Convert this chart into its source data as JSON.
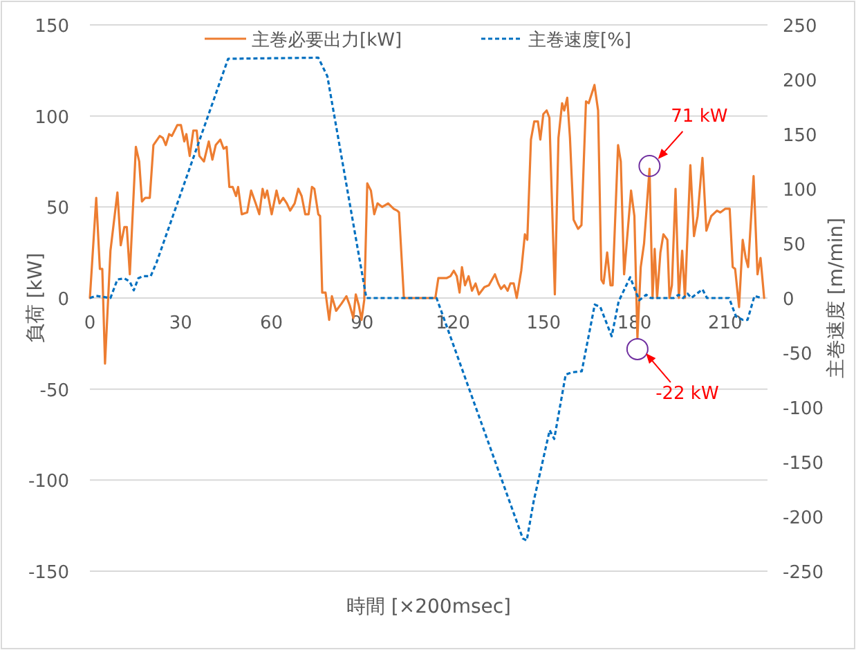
{
  "chart_data": {
    "type": "line",
    "xlabel": "時間 [×200msec]",
    "ylabel": "負荷 [kW]",
    "y2label": "主巻速度 [m/min]",
    "xlim": [
      0,
      224
    ],
    "xticks": [
      0,
      30,
      60,
      90,
      120,
      150,
      180,
      210
    ],
    "ylim": [
      -150,
      150
    ],
    "yticks": [
      -150,
      -100,
      -50,
      0,
      50,
      100,
      150
    ],
    "y2lim": [
      -250,
      250
    ],
    "y2ticks": [
      -250,
      -200,
      -150,
      -100,
      -50,
      0,
      50,
      100,
      150,
      200,
      250
    ],
    "grid": "y",
    "legend": "top",
    "marker": "none",
    "series": [
      {
        "name": "主巻必要出力[kW]",
        "color": "#ed7d31",
        "line_style": "solid",
        "x": [
          0,
          2.1,
          3.3,
          4.1,
          5,
          6.8,
          9.1,
          10.2,
          11.4,
          12.2,
          13.2,
          15.2,
          16.3,
          17.2,
          18.3,
          19.8,
          21,
          23.1,
          24.1,
          25.1,
          26.2,
          27.1,
          28.9,
          30.1,
          31.2,
          31.9,
          33,
          34.2,
          35.3,
          36.2,
          37.7,
          39.3,
          40.5,
          41.6,
          43.1,
          44.2,
          45.2,
          46.1,
          47.2,
          48.3,
          49,
          50.2,
          52,
          53.3,
          54.8,
          56,
          57.1,
          57.8,
          58.6,
          60.1,
          61.7,
          62.7,
          63.9,
          65.1,
          66.2,
          67.7,
          68.9,
          70,
          71.2,
          72.3,
          73.4,
          74.2,
          75.5,
          76.1,
          76.8,
          77.9,
          79.1,
          80,
          81.4,
          83.2,
          84.8,
          85.9,
          87.1,
          87.9,
          88.9,
          89.8,
          90.7,
          91.7,
          92.9,
          94,
          95.1,
          96.6,
          98.6,
          100.4,
          101.6,
          102.2,
          103.8,
          114.2,
          115.2,
          116.2,
          118,
          119.2,
          120.3,
          121.3,
          122.2,
          123,
          124,
          125.2,
          126.3,
          127.5,
          128.6,
          130.4,
          131.9,
          133.9,
          135,
          135.9,
          137,
          138.1,
          139,
          140.1,
          141.1,
          142.6,
          143.8,
          144.6,
          145.8,
          146.9,
          148.1,
          148.9,
          149.9,
          151,
          151.9,
          153.7,
          154.9,
          156.1,
          156.8,
          157.8,
          158.7,
          159.9,
          161.4,
          162.5,
          164,
          164.9,
          166.8,
          168,
          169.1,
          169.8,
          171,
          172.1,
          172.8,
          174.6,
          175.5,
          176.6,
          178.9,
          180,
          181,
          182.1,
          183.2,
          185,
          186,
          186.7,
          187.5,
          188.6,
          189.6,
          190.9,
          191.6,
          192.4,
          193.6,
          194.7,
          195.8,
          196.7,
          198.5,
          199.7,
          200.9,
          202.5,
          203.8,
          205.4,
          207.3,
          208.4,
          210,
          211.5,
          212.5,
          213.3,
          214.6,
          215.8,
          216.8,
          217.6,
          219.4,
          220.7,
          221.7,
          222.9
        ],
        "values": [
          0,
          55,
          16,
          16,
          -36,
          26,
          58,
          29,
          39,
          39,
          13,
          83,
          75,
          53,
          55,
          55,
          84,
          89,
          88,
          84,
          90,
          89,
          95,
          95,
          86,
          90,
          78,
          92,
          92,
          78,
          75,
          86,
          76,
          84,
          87,
          82,
          83,
          61,
          61,
          56,
          61,
          46,
          47,
          59,
          52,
          46,
          60,
          55,
          59,
          46,
          59,
          52,
          55,
          52,
          48,
          52,
          60,
          56,
          46,
          46,
          61,
          60,
          46,
          45,
          3,
          3,
          -12,
          1,
          -7,
          -3,
          1,
          -4,
          -11,
          2,
          -4,
          -12,
          -1,
          63,
          59,
          46,
          52,
          50,
          52,
          49,
          48,
          47,
          0,
          0,
          11,
          11,
          11,
          12,
          15,
          12,
          3,
          17,
          7,
          12,
          4,
          8,
          2,
          6,
          7,
          13,
          8,
          5,
          7,
          4,
          8,
          8,
          0,
          15,
          35,
          32,
          87,
          97,
          97,
          87,
          101,
          103,
          99,
          2,
          88,
          107,
          103,
          110,
          88,
          43,
          38,
          40,
          108,
          107,
          117,
          103,
          10,
          8,
          25,
          7,
          7,
          84,
          75,
          13,
          59,
          45,
          -22,
          17,
          30,
          71,
          0,
          27,
          0,
          25,
          35,
          32,
          0,
          7,
          60,
          0,
          26,
          0,
          73,
          34,
          45,
          77,
          37,
          45,
          48,
          47,
          49,
          49,
          17,
          16,
          -5,
          32,
          22,
          17,
          67,
          13,
          22,
          0
        ]
      },
      {
        "name": "主巻速度[%]",
        "color": "#0070c0",
        "line_style": "dashed",
        "axis": "y2",
        "x": [
          0,
          2,
          6.8,
          9.1,
          11.4,
          13.2,
          14.5,
          16,
          17.5,
          20.1,
          22.1,
          45.7,
          75.5,
          78.5,
          91.4,
          114.6,
          143.1,
          144.4,
          146.7,
          152,
          153.5,
          157.3,
          159.3,
          162.6,
          166.9,
          168.7,
          172.5,
          174.8,
          178.6,
          181.6,
          183.9,
          185.4,
          193,
          194.6,
          196.1,
          197.6,
          198.8,
          202.5,
          204,
          211.3,
          213.6,
          215.9,
          217.4,
          219.7,
          222
        ],
        "values": [
          0,
          2,
          0,
          17,
          18,
          15,
          7,
          18,
          20,
          20,
          33,
          219,
          220,
          203,
          0,
          0,
          -220,
          -222,
          -186,
          -121,
          -129,
          -70,
          -68,
          -67,
          -6,
          -8,
          -35,
          -3,
          19,
          -2,
          3,
          0,
          0,
          3,
          0,
          4,
          0,
          8,
          0,
          0,
          -17,
          -20,
          -20,
          2,
          0
        ]
      }
    ],
    "annotations": [
      {
        "text": "71 kW",
        "x": 185,
        "y": 71
      },
      {
        "text": "-22 kW",
        "x": 181,
        "y": -22
      }
    ]
  }
}
